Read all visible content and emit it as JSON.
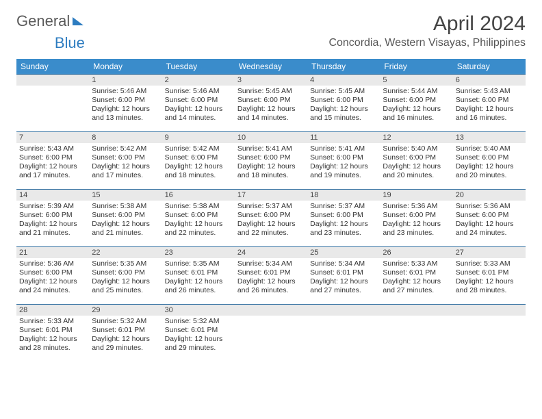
{
  "logo": {
    "text1": "General",
    "text2": "Blue"
  },
  "title": "April 2024",
  "location": "Concordia, Western Visayas, Philippines",
  "colors": {
    "header_bg": "#3a8ccb",
    "daynum_bg": "#e9e9e9",
    "row_border": "#2f6ea0",
    "logo_gray": "#5a5a5a",
    "logo_blue": "#2d7cc0",
    "text": "#333333",
    "title": "#444444",
    "bg": "#ffffff"
  },
  "typography": {
    "title_fontsize": 30,
    "location_fontsize": 16,
    "header_fontsize": 12,
    "cell_fontsize": 10.5
  },
  "day_headers": [
    "Sunday",
    "Monday",
    "Tuesday",
    "Wednesday",
    "Thursday",
    "Friday",
    "Saturday"
  ],
  "weeks": [
    [
      {
        "num": "",
        "sunrise": "",
        "sunset": "",
        "daylight": ""
      },
      {
        "num": "1",
        "sunrise": "Sunrise: 5:46 AM",
        "sunset": "Sunset: 6:00 PM",
        "daylight": "Daylight: 12 hours and 13 minutes."
      },
      {
        "num": "2",
        "sunrise": "Sunrise: 5:46 AM",
        "sunset": "Sunset: 6:00 PM",
        "daylight": "Daylight: 12 hours and 14 minutes."
      },
      {
        "num": "3",
        "sunrise": "Sunrise: 5:45 AM",
        "sunset": "Sunset: 6:00 PM",
        "daylight": "Daylight: 12 hours and 14 minutes."
      },
      {
        "num": "4",
        "sunrise": "Sunrise: 5:45 AM",
        "sunset": "Sunset: 6:00 PM",
        "daylight": "Daylight: 12 hours and 15 minutes."
      },
      {
        "num": "5",
        "sunrise": "Sunrise: 5:44 AM",
        "sunset": "Sunset: 6:00 PM",
        "daylight": "Daylight: 12 hours and 16 minutes."
      },
      {
        "num": "6",
        "sunrise": "Sunrise: 5:43 AM",
        "sunset": "Sunset: 6:00 PM",
        "daylight": "Daylight: 12 hours and 16 minutes."
      }
    ],
    [
      {
        "num": "7",
        "sunrise": "Sunrise: 5:43 AM",
        "sunset": "Sunset: 6:00 PM",
        "daylight": "Daylight: 12 hours and 17 minutes."
      },
      {
        "num": "8",
        "sunrise": "Sunrise: 5:42 AM",
        "sunset": "Sunset: 6:00 PM",
        "daylight": "Daylight: 12 hours and 17 minutes."
      },
      {
        "num": "9",
        "sunrise": "Sunrise: 5:42 AM",
        "sunset": "Sunset: 6:00 PM",
        "daylight": "Daylight: 12 hours and 18 minutes."
      },
      {
        "num": "10",
        "sunrise": "Sunrise: 5:41 AM",
        "sunset": "Sunset: 6:00 PM",
        "daylight": "Daylight: 12 hours and 18 minutes."
      },
      {
        "num": "11",
        "sunrise": "Sunrise: 5:41 AM",
        "sunset": "Sunset: 6:00 PM",
        "daylight": "Daylight: 12 hours and 19 minutes."
      },
      {
        "num": "12",
        "sunrise": "Sunrise: 5:40 AM",
        "sunset": "Sunset: 6:00 PM",
        "daylight": "Daylight: 12 hours and 20 minutes."
      },
      {
        "num": "13",
        "sunrise": "Sunrise: 5:40 AM",
        "sunset": "Sunset: 6:00 PM",
        "daylight": "Daylight: 12 hours and 20 minutes."
      }
    ],
    [
      {
        "num": "14",
        "sunrise": "Sunrise: 5:39 AM",
        "sunset": "Sunset: 6:00 PM",
        "daylight": "Daylight: 12 hours and 21 minutes."
      },
      {
        "num": "15",
        "sunrise": "Sunrise: 5:38 AM",
        "sunset": "Sunset: 6:00 PM",
        "daylight": "Daylight: 12 hours and 21 minutes."
      },
      {
        "num": "16",
        "sunrise": "Sunrise: 5:38 AM",
        "sunset": "Sunset: 6:00 PM",
        "daylight": "Daylight: 12 hours and 22 minutes."
      },
      {
        "num": "17",
        "sunrise": "Sunrise: 5:37 AM",
        "sunset": "Sunset: 6:00 PM",
        "daylight": "Daylight: 12 hours and 22 minutes."
      },
      {
        "num": "18",
        "sunrise": "Sunrise: 5:37 AM",
        "sunset": "Sunset: 6:00 PM",
        "daylight": "Daylight: 12 hours and 23 minutes."
      },
      {
        "num": "19",
        "sunrise": "Sunrise: 5:36 AM",
        "sunset": "Sunset: 6:00 PM",
        "daylight": "Daylight: 12 hours and 23 minutes."
      },
      {
        "num": "20",
        "sunrise": "Sunrise: 5:36 AM",
        "sunset": "Sunset: 6:00 PM",
        "daylight": "Daylight: 12 hours and 24 minutes."
      }
    ],
    [
      {
        "num": "21",
        "sunrise": "Sunrise: 5:36 AM",
        "sunset": "Sunset: 6:00 PM",
        "daylight": "Daylight: 12 hours and 24 minutes."
      },
      {
        "num": "22",
        "sunrise": "Sunrise: 5:35 AM",
        "sunset": "Sunset: 6:00 PM",
        "daylight": "Daylight: 12 hours and 25 minutes."
      },
      {
        "num": "23",
        "sunrise": "Sunrise: 5:35 AM",
        "sunset": "Sunset: 6:01 PM",
        "daylight": "Daylight: 12 hours and 26 minutes."
      },
      {
        "num": "24",
        "sunrise": "Sunrise: 5:34 AM",
        "sunset": "Sunset: 6:01 PM",
        "daylight": "Daylight: 12 hours and 26 minutes."
      },
      {
        "num": "25",
        "sunrise": "Sunrise: 5:34 AM",
        "sunset": "Sunset: 6:01 PM",
        "daylight": "Daylight: 12 hours and 27 minutes."
      },
      {
        "num": "26",
        "sunrise": "Sunrise: 5:33 AM",
        "sunset": "Sunset: 6:01 PM",
        "daylight": "Daylight: 12 hours and 27 minutes."
      },
      {
        "num": "27",
        "sunrise": "Sunrise: 5:33 AM",
        "sunset": "Sunset: 6:01 PM",
        "daylight": "Daylight: 12 hours and 28 minutes."
      }
    ],
    [
      {
        "num": "28",
        "sunrise": "Sunrise: 5:33 AM",
        "sunset": "Sunset: 6:01 PM",
        "daylight": "Daylight: 12 hours and 28 minutes."
      },
      {
        "num": "29",
        "sunrise": "Sunrise: 5:32 AM",
        "sunset": "Sunset: 6:01 PM",
        "daylight": "Daylight: 12 hours and 29 minutes."
      },
      {
        "num": "30",
        "sunrise": "Sunrise: 5:32 AM",
        "sunset": "Sunset: 6:01 PM",
        "daylight": "Daylight: 12 hours and 29 minutes."
      },
      {
        "num": "",
        "sunrise": "",
        "sunset": "",
        "daylight": ""
      },
      {
        "num": "",
        "sunrise": "",
        "sunset": "",
        "daylight": ""
      },
      {
        "num": "",
        "sunrise": "",
        "sunset": "",
        "daylight": ""
      },
      {
        "num": "",
        "sunrise": "",
        "sunset": "",
        "daylight": ""
      }
    ]
  ]
}
